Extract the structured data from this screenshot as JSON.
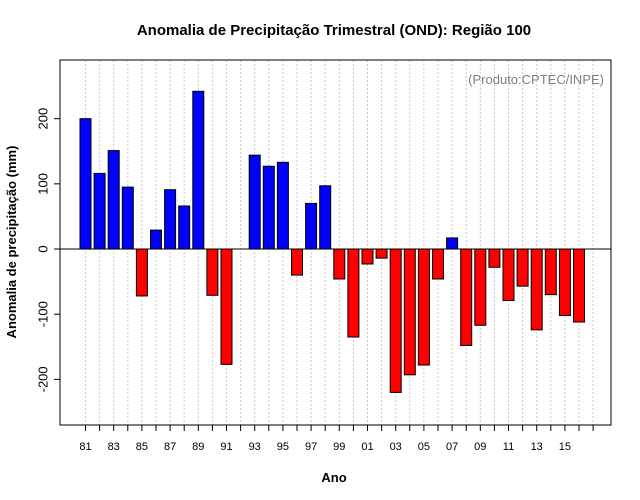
{
  "chart_data": {
    "type": "bar",
    "title": "Anomalia de Precipitação Trimestral (OND): Região 100",
    "xlabel": "Ano",
    "ylabel": "Anomalia de precipitação (mm)",
    "credit": "(Produto:CPTEC/INPE)",
    "ylim": [
      -270,
      290
    ],
    "yticks": [
      -200,
      -100,
      0,
      100,
      200
    ],
    "xticks": [
      "81",
      "83",
      "85",
      "87",
      "89",
      "91",
      "93",
      "95",
      "97",
      "99",
      "01",
      "03",
      "05",
      "07",
      "09",
      "11",
      "13",
      "15"
    ],
    "categories": [
      "1981",
      "1982",
      "1983",
      "1984",
      "1985",
      "1986",
      "1987",
      "1988",
      "1989",
      "1990",
      "1991",
      "1992",
      "1993",
      "1994",
      "1995",
      "1996",
      "1997",
      "1998",
      "1999",
      "2000",
      "2001",
      "2002",
      "2003",
      "2004",
      "2005",
      "2006",
      "2007",
      "2008",
      "2009",
      "2010",
      "2011",
      "2012",
      "2013",
      "2014",
      "2015",
      "2016",
      "2017"
    ],
    "values": [
      200,
      116,
      151,
      95,
      -72,
      29,
      91,
      66,
      242,
      -71,
      -177,
      0,
      144,
      127,
      133,
      -40,
      70,
      97,
      -46,
      -135,
      -23,
      -14,
      -220,
      -193,
      -178,
      -46,
      17,
      -148,
      -117,
      -28,
      -79,
      -57,
      -124,
      -70,
      -102,
      -112,
      null
    ],
    "colors": {
      "positive": "#0000ff",
      "negative": "#ff0000",
      "grid": "#c8c8c8"
    }
  }
}
